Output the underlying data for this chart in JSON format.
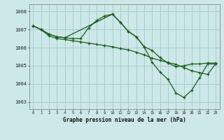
{
  "background_color": "#cce8e8",
  "grid_color": "#aacccc",
  "line_color": "#1a5c1a",
  "title": "Graphe pression niveau de la mer (hPa)",
  "ylabel_values": [
    1003,
    1004,
    1005,
    1006,
    1007,
    1008
  ],
  "xlim": [
    -0.5,
    23.5
  ],
  "ylim": [
    1002.6,
    1008.4
  ],
  "xticks": [
    0,
    1,
    2,
    3,
    4,
    5,
    6,
    7,
    8,
    9,
    10,
    11,
    12,
    13,
    14,
    15,
    16,
    17,
    18,
    19,
    20,
    21,
    22,
    23
  ],
  "line1_x": [
    0,
    1,
    2,
    3,
    4,
    5,
    6,
    7,
    8,
    9,
    10,
    11,
    12,
    13,
    14,
    15,
    16,
    17,
    18,
    19,
    20,
    21,
    22,
    23
  ],
  "line1_y": [
    1007.2,
    1007.0,
    1006.75,
    1006.6,
    1006.55,
    1006.5,
    1006.5,
    1007.1,
    1007.5,
    1007.75,
    1007.85,
    1007.4,
    1006.9,
    1006.6,
    1006.05,
    1005.85,
    1005.45,
    1005.15,
    1004.95,
    1005.0,
    1005.1,
    1005.1,
    1005.15,
    1005.15
  ],
  "line2_x": [
    0,
    1,
    2,
    3,
    4,
    10,
    11,
    12,
    13,
    14,
    15,
    16,
    17,
    18,
    19,
    20,
    21,
    22,
    23
  ],
  "line2_y": [
    1007.2,
    1007.0,
    1006.75,
    1006.6,
    1006.55,
    1007.85,
    1007.4,
    1006.9,
    1006.6,
    1006.05,
    1005.2,
    1004.65,
    1004.25,
    1003.5,
    1003.25,
    1003.65,
    1004.35,
    1005.1,
    1005.1
  ],
  "line3_x": [
    0,
    1,
    2,
    3,
    4,
    5,
    6,
    7,
    8,
    9,
    10,
    11,
    12,
    13,
    14,
    15,
    16,
    17,
    18,
    19,
    20,
    21,
    22,
    23
  ],
  "line3_y": [
    1007.2,
    1007.0,
    1006.65,
    1006.5,
    1006.45,
    1006.38,
    1006.32,
    1006.25,
    1006.18,
    1006.12,
    1006.05,
    1005.95,
    1005.88,
    1005.75,
    1005.6,
    1005.42,
    1005.3,
    1005.18,
    1005.08,
    1004.9,
    1004.72,
    1004.62,
    1004.52,
    1005.1
  ]
}
